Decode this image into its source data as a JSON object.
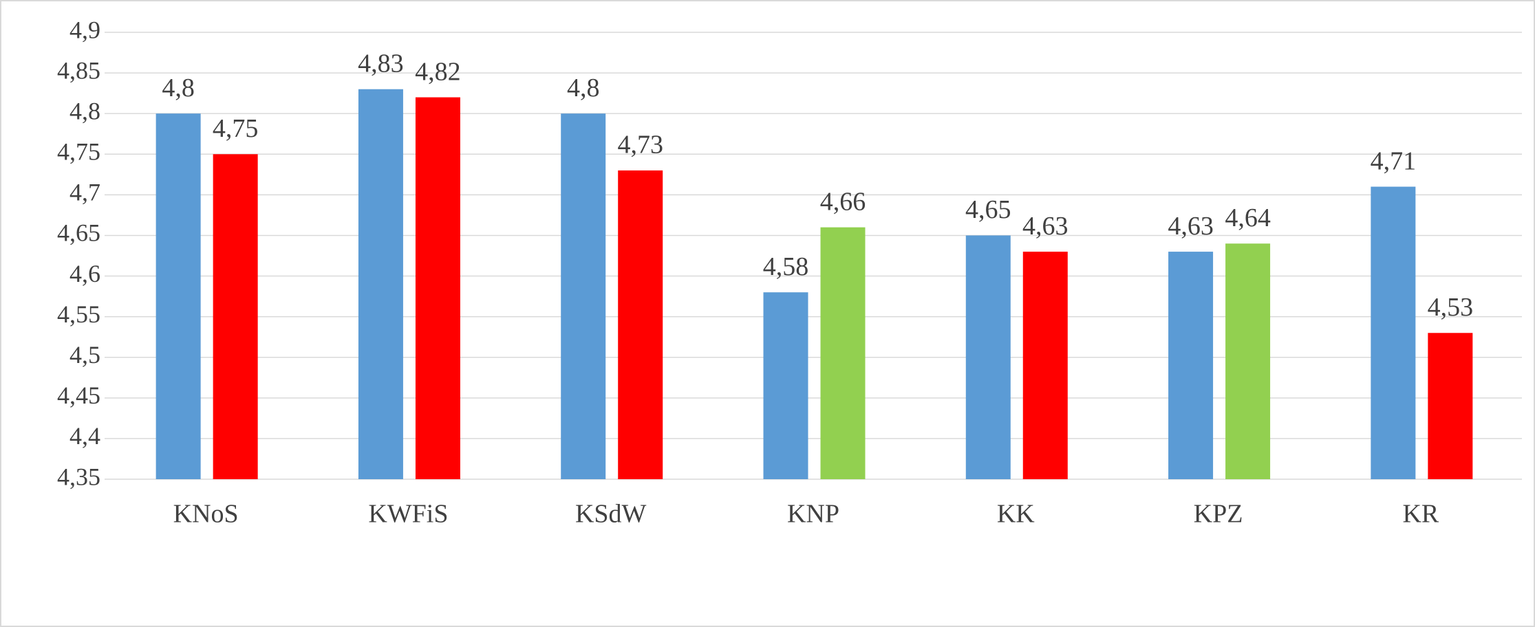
{
  "chart_data": {
    "type": "bar",
    "categories": [
      "KNoS",
      "KWFiS",
      "KSdW",
      "KNP",
      "KK",
      "KPZ",
      "KR"
    ],
    "series": [
      {
        "color": "#5b9bd5",
        "values": [
          4.8,
          4.83,
          4.8,
          4.58,
          4.65,
          4.63,
          4.71
        ],
        "value_labels": [
          "4,8",
          "4,83",
          "4,8",
          "4,58",
          "4,65",
          "4,63",
          "4,71"
        ]
      },
      {
        "colors": [
          "#ff0000",
          "#ff0000",
          "#ff0000",
          "#92d050",
          "#ff0000",
          "#92d050",
          "#ff0000"
        ],
        "values": [
          4.75,
          4.82,
          4.73,
          4.66,
          4.63,
          4.64,
          4.53
        ],
        "value_labels": [
          "4,75",
          "4,82",
          "4,73",
          "4,66",
          "4,63",
          "4,64",
          "4,53"
        ]
      }
    ],
    "ylim": [
      4.35,
      4.9
    ],
    "yticks": [
      {
        "value": 4.35,
        "label": "4,35"
      },
      {
        "value": 4.4,
        "label": "4,4"
      },
      {
        "value": 4.45,
        "label": "4,45"
      },
      {
        "value": 4.5,
        "label": "4,5"
      },
      {
        "value": 4.55,
        "label": "4,55"
      },
      {
        "value": 4.6,
        "label": "4,6"
      },
      {
        "value": 4.65,
        "label": "4,65"
      },
      {
        "value": 4.7,
        "label": "4,7"
      },
      {
        "value": 4.75,
        "label": "4,75"
      },
      {
        "value": 4.8,
        "label": "4,8"
      },
      {
        "value": 4.85,
        "label": "4,85"
      },
      {
        "value": 4.9,
        "label": "4,9"
      }
    ],
    "grid": true
  }
}
